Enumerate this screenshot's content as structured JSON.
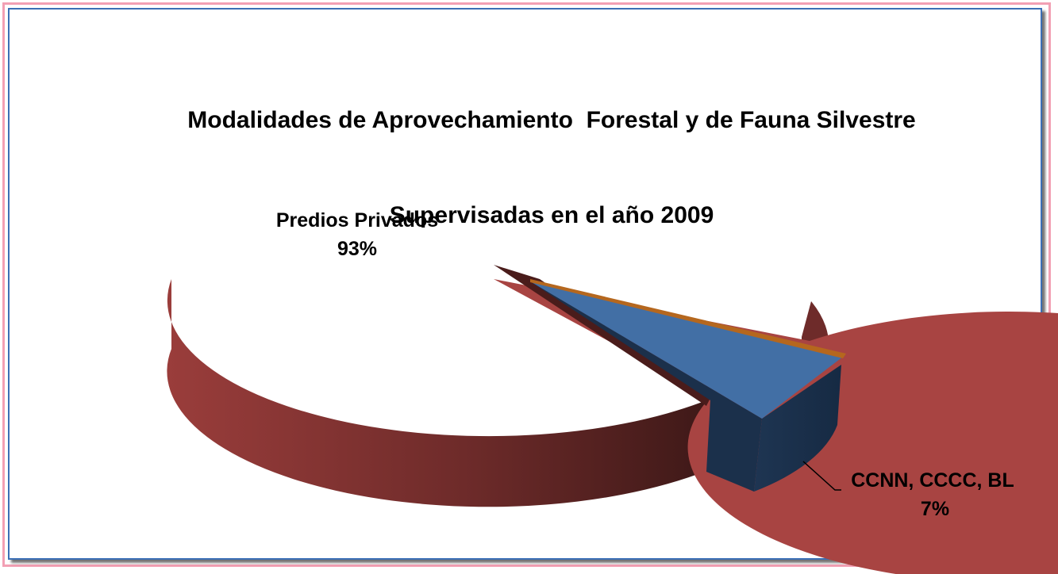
{
  "chart_data": {
    "type": "pie",
    "title_line1": "Modalidades de Aprovechamiento  Forestal y de Fauna Silvestre",
    "title_line2": "Supervisadas en el año 2009",
    "slices": [
      {
        "label": "Predios Privados",
        "pct_label": "93%",
        "value": 93,
        "color": "#a84442",
        "exploded": false
      },
      {
        "label": "CCNN, CCCC, BL",
        "pct_label": "7%",
        "value": 7,
        "color": "#426fa5",
        "exploded": true
      }
    ],
    "style": "3d-exploded"
  }
}
